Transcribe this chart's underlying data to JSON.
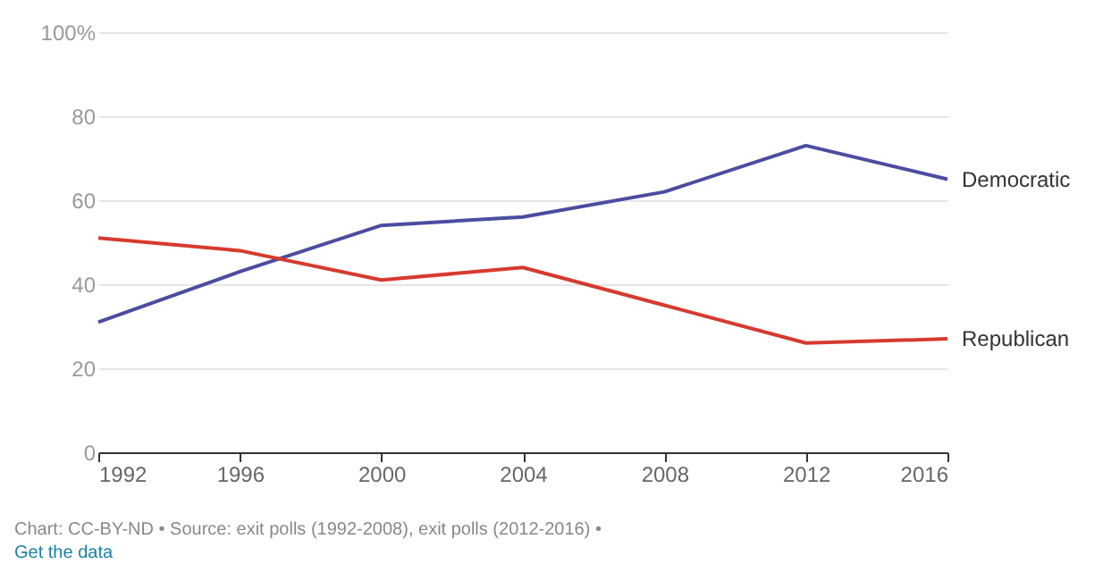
{
  "chart_data": {
    "type": "line",
    "x": [
      1992,
      1996,
      2000,
      2004,
      2008,
      2012,
      2016
    ],
    "series": [
      {
        "name": "Democratic",
        "color": "#4c4ca0",
        "values": [
          31,
          43,
          54,
          56,
          62,
          73,
          65
        ]
      },
      {
        "name": "Republican",
        "color": "#d73a2f",
        "values": [
          51,
          48,
          41,
          44,
          35,
          26,
          27
        ]
      }
    ],
    "xlim": [
      1992,
      2016
    ],
    "xticks": [
      1992,
      1996,
      2000,
      2004,
      2008,
      2012,
      2016
    ],
    "ylim": [
      0,
      100
    ],
    "yticks": [
      0,
      20,
      40,
      60,
      80,
      {
        "value": 100,
        "label": "100%"
      }
    ],
    "grid": "y",
    "legend": false,
    "marker": "none",
    "line_style": "solid",
    "annotations": [
      "Chart: CC-BY-ND • Source: exit polls (1992-2008), exit polls (2012-2016) •",
      "Get the data"
    ]
  }
}
